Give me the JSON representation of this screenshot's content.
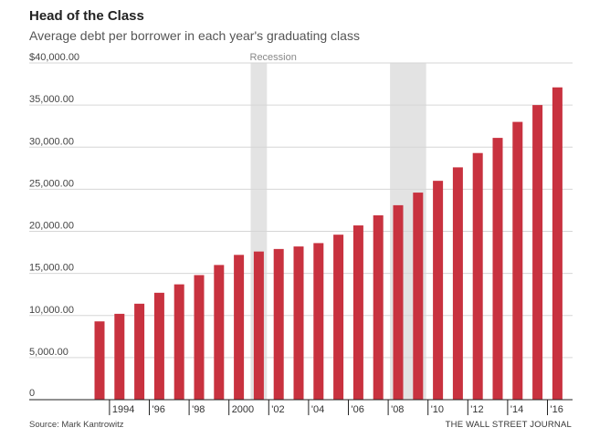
{
  "header": {
    "title": "Head of the Class",
    "subtitle": "Average debt per borrower in each year's graduating class"
  },
  "footer": {
    "source": "Source: Mark Kantrowitz",
    "credit": "THE WALL STREET JOURNAL"
  },
  "chart_data": {
    "type": "bar",
    "title": "Head of the Class",
    "subtitle": "Average debt per borrower in each year's graduating class",
    "xlabel": "",
    "ylabel": "",
    "categories": [
      1993,
      1994,
      1995,
      1996,
      1997,
      1998,
      1999,
      2000,
      2001,
      2002,
      2003,
      2004,
      2005,
      2006,
      2007,
      2008,
      2009,
      2010,
      2011,
      2012,
      2013,
      2014,
      2015,
      2016
    ],
    "values": [
      9300,
      10200,
      11400,
      12700,
      13700,
      14800,
      16000,
      17200,
      17600,
      17900,
      18200,
      18600,
      19600,
      20700,
      21900,
      23100,
      24600,
      26000,
      27600,
      29300,
      31100,
      33000,
      35000,
      37100
    ],
    "ylim": [
      0,
      40000
    ],
    "yticks": [
      {
        "value": 0,
        "label": "0"
      },
      {
        "value": 5000,
        "label": "5,000.00"
      },
      {
        "value": 10000,
        "label": "10,000.00"
      },
      {
        "value": 15000,
        "label": "15,000.00"
      },
      {
        "value": 20000,
        "label": "20,000.00"
      },
      {
        "value": 25000,
        "label": "25,000.00"
      },
      {
        "value": 30000,
        "label": "30,000.00"
      },
      {
        "value": 35000,
        "label": "35,000.00"
      },
      {
        "value": 40000,
        "label": "$40,000.00"
      }
    ],
    "xticks": [
      {
        "year": 1994,
        "label": "1994"
      },
      {
        "year": 1996,
        "label": "'96"
      },
      {
        "year": 1998,
        "label": "'98"
      },
      {
        "year": 2000,
        "label": "2000"
      },
      {
        "year": 2002,
        "label": "'02"
      },
      {
        "year": 2004,
        "label": "'04"
      },
      {
        "year": 2006,
        "label": "'06"
      },
      {
        "year": 2008,
        "label": "'08"
      },
      {
        "year": 2010,
        "label": "'10"
      },
      {
        "year": 2012,
        "label": "'12"
      },
      {
        "year": 2014,
        "label": "'14"
      },
      {
        "year": 2016,
        "label": "'16"
      }
    ],
    "recessions": [
      {
        "start": 2001,
        "end": 2001,
        "label": "Recession"
      },
      {
        "start": 2008,
        "end": 2009,
        "label": ""
      }
    ],
    "grid": true,
    "colors": {
      "bar": "#c8323f",
      "recession": "#e3e3e3",
      "grid": "#d6d6d6",
      "axis": "#222222"
    }
  }
}
